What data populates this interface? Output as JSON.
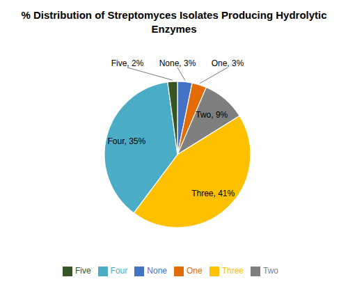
{
  "chart_data": {
    "type": "pie",
    "title": "% Distribution of Streptomyces Isolates Producing Hydrolytic Enzymes",
    "categories": [
      "None",
      "One",
      "Two",
      "Three",
      "Four",
      "Five"
    ],
    "values": [
      3,
      3,
      9,
      41,
      35,
      2
    ],
    "value_labels": [
      "None, 3%",
      "One, 3%",
      "Two, 9%",
      "Three, 41%",
      "Four, 35%",
      "Five, 2%"
    ],
    "colors": [
      "#4472C4",
      "#E36C09",
      "#7F7F7F",
      "#FFC000",
      "#4BACC6",
      "#375623"
    ],
    "data_labels": true,
    "legend": "bottom"
  }
}
